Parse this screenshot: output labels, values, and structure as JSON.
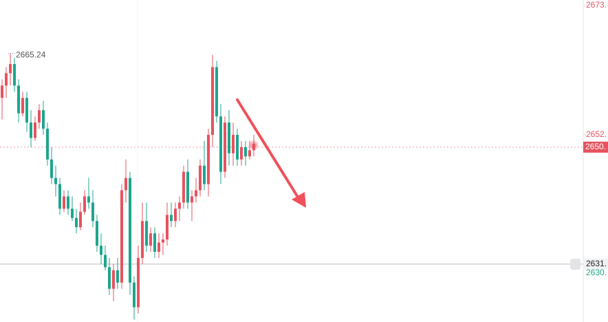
{
  "chart_data": {
    "type": "candlestick",
    "open": [
      2658,
      2660,
      2662,
      2663.5,
      2660,
      2655.5,
      2658,
      2654,
      2651.5,
      2654,
      2656,
      2653,
      2648,
      2645,
      2644,
      2640,
      2642,
      2640,
      2638.5,
      2637,
      2639.5,
      2642,
      2641,
      2638,
      2634,
      2632.5,
      2630.5,
      2627,
      2630,
      2628,
      2643,
      2645,
      2628,
      2624,
      2632,
      2638,
      2634,
      2636,
      2633,
      2634.5,
      2635,
      2639,
      2638,
      2640,
      2641,
      2646,
      2641,
      2642,
      2643,
      2647,
      2644,
      2652,
      2663,
      2655,
      2646,
      2654,
      2649,
      2652,
      2648,
      2650,
      2648.5,
      2649.5
    ],
    "high": [
      2661,
      2663,
      2665.24,
      2664.5,
      2661,
      2659,
      2659,
      2656,
      2655,
      2657,
      2657.5,
      2654,
      2650,
      2647,
      2645,
      2643,
      2643,
      2642,
      2640,
      2641,
      2643,
      2645,
      2643,
      2639,
      2636,
      2634,
      2632,
      2631,
      2632,
      2644,
      2648,
      2646,
      2629,
      2634,
      2641,
      2641,
      2637,
      2637,
      2636,
      2636,
      2641,
      2641,
      2641,
      2642,
      2647,
      2648,
      2643,
      2645,
      2648,
      2651,
      2653,
      2665,
      2664,
      2657,
      2655,
      2656,
      2654,
      2653,
      2651,
      2651,
      2651,
      2652
    ],
    "low": [
      2654.5,
      2658,
      2660,
      2659,
      2654,
      2655,
      2652.5,
      2650,
      2651,
      2653,
      2652,
      2647,
      2644,
      2642,
      2639,
      2639.5,
      2639,
      2638,
      2636,
      2636.5,
      2639,
      2640,
      2637,
      2633,
      2631,
      2630,
      2626,
      2625,
      2627,
      2627,
      2641,
      2626,
      2622,
      2623,
      2631,
      2633,
      2633,
      2632,
      2632,
      2632.5,
      2634,
      2637,
      2637,
      2638,
      2640,
      2640,
      2638,
      2641,
      2642,
      2643,
      2642,
      2650,
      2654,
      2644,
      2645,
      2647,
      2647,
      2647,
      2647,
      2647,
      2648,
      2648.5
    ],
    "close": [
      2660,
      2662,
      2663.5,
      2660,
      2655.5,
      2658,
      2654,
      2651.5,
      2654,
      2656,
      2653,
      2648,
      2645,
      2644,
      2640,
      2642,
      2640,
      2638.5,
      2637,
      2639.5,
      2642,
      2641,
      2638,
      2634,
      2632.5,
      2630.5,
      2627,
      2630,
      2628,
      2643,
      2645,
      2628,
      2624,
      2632,
      2638,
      2634,
      2636,
      2633,
      2634.5,
      2635,
      2639,
      2638,
      2640,
      2641,
      2646,
      2641,
      2642,
      2643,
      2647,
      2644,
      2652,
      2663,
      2655,
      2646,
      2654,
      2649,
      2652,
      2648,
      2650,
      2648.5,
      2649.5,
      2650.5
    ],
    "up_color": "#e5535f",
    "down_color": "#1ea58c",
    "ylim": [
      2621.6,
      2673.9
    ],
    "yticks": [
      {
        "value": 2673,
        "label": "2673."
      },
      {
        "value": 2652,
        "label": "2652."
      }
    ],
    "high_annotation": 2665.24,
    "last_price": {
      "value": 2650,
      "label": "2650."
    },
    "alert_line": {
      "value": 2631,
      "label": "2631."
    },
    "bid_label": {
      "value": 2630,
      "label": "2630."
    }
  }
}
